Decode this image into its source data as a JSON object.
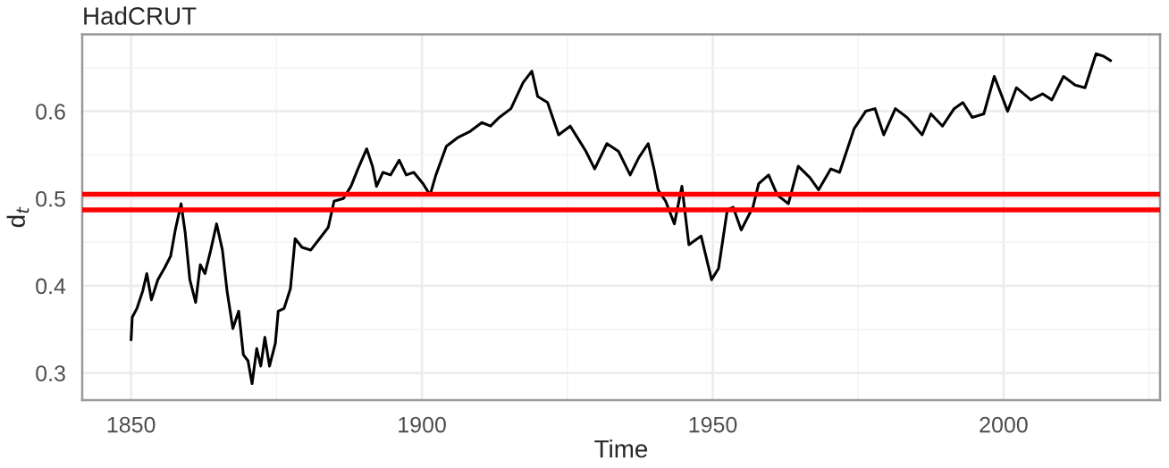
{
  "chart_data": {
    "type": "line",
    "title": "HadCRUT",
    "xlabel": "Time",
    "ylabel": "d$_{t}$",
    "xlim": [
      1841.6,
      2026.9
    ],
    "xticks": [
      1850,
      1900,
      1950,
      2000
    ],
    "ylim": [
      0.269,
      0.688
    ],
    "yticks": [
      0.3,
      0.4,
      0.5,
      0.6
    ],
    "grid": true,
    "ref_lines": [
      {
        "axis": "y",
        "value": 0.505,
        "color": "#ff0000"
      },
      {
        "axis": "y",
        "value": 0.487,
        "color": "#ff0000"
      }
    ],
    "series": [
      {
        "color": "#000000",
        "x": [
          1850,
          1850.2,
          1851,
          1852,
          1852.7,
          1853.5,
          1854.6,
          1855.8,
          1856.8,
          1857.6,
          1858.6,
          1859.3,
          1860.1,
          1861.1,
          1861.9,
          1862.7,
          1863.7,
          1864.7,
          1865.7,
          1866.5,
          1867.5,
          1868.5,
          1869.3,
          1870.1,
          1870.8,
          1871.6,
          1872.3,
          1873,
          1873.8,
          1874.8,
          1875.3,
          1876.3,
          1877.4,
          1878.2,
          1879.4,
          1880.9,
          1882.4,
          1883.9,
          1884.9,
          1886.5,
          1887.8,
          1889,
          1890.5,
          1891.5,
          1892.2,
          1893.3,
          1894.6,
          1896.1,
          1897.3,
          1898.6,
          1900.2,
          1901.4,
          1902.4,
          1904.2,
          1906.2,
          1908.3,
          1910.3,
          1911.8,
          1913.3,
          1915.3,
          1917.4,
          1918.9,
          1919.9,
          1921.6,
          1923.5,
          1925.5,
          1927,
          1928.2,
          1929.7,
          1931.8,
          1933.8,
          1935.8,
          1937.3,
          1938.9,
          1939.9,
          1940.6,
          1941.9,
          1943.4,
          1944.7,
          1945.9,
          1948,
          1949.8,
          1951,
          1952.5,
          1953.5,
          1954.9,
          1956.9,
          1957.9,
          1959.6,
          1961.1,
          1963,
          1964.7,
          1966.7,
          1968.2,
          1970.3,
          1971.8,
          1973.3,
          1974.3,
          1976.3,
          1977.9,
          1979.4,
          1981.4,
          1983.4,
          1986,
          1987.5,
          1989.5,
          1991.5,
          1993,
          1994.6,
          1996.6,
          1998.4,
          2000.7,
          2002.2,
          2004.7,
          2006.7,
          2008.3,
          2010.3,
          2012.3,
          2014,
          2015.9,
          2017.2,
          2018.4
        ],
        "values": [
          0.338,
          0.364,
          0.374,
          0.394,
          0.414,
          0.384,
          0.407,
          0.421,
          0.434,
          0.464,
          0.494,
          0.461,
          0.407,
          0.381,
          0.424,
          0.414,
          0.441,
          0.471,
          0.441,
          0.394,
          0.351,
          0.371,
          0.321,
          0.314,
          0.288,
          0.328,
          0.308,
          0.341,
          0.308,
          0.334,
          0.371,
          0.374,
          0.397,
          0.454,
          0.444,
          0.441,
          0.454,
          0.467,
          0.497,
          0.5,
          0.514,
          0.534,
          0.557,
          0.537,
          0.514,
          0.53,
          0.527,
          0.544,
          0.527,
          0.53,
          0.517,
          0.504,
          0.527,
          0.56,
          0.57,
          0.577,
          0.587,
          0.583,
          0.593,
          0.603,
          0.633,
          0.646,
          0.617,
          0.61,
          0.573,
          0.583,
          0.567,
          0.554,
          0.534,
          0.563,
          0.554,
          0.527,
          0.547,
          0.563,
          0.534,
          0.51,
          0.497,
          0.471,
          0.514,
          0.447,
          0.457,
          0.407,
          0.42,
          0.487,
          0.49,
          0.464,
          0.49,
          0.517,
          0.527,
          0.504,
          0.494,
          0.537,
          0.524,
          0.51,
          0.534,
          0.53,
          0.56,
          0.58,
          0.6,
          0.603,
          0.573,
          0.603,
          0.593,
          0.573,
          0.597,
          0.583,
          0.603,
          0.61,
          0.593,
          0.597,
          0.64,
          0.6,
          0.627,
          0.613,
          0.62,
          0.613,
          0.64,
          0.63,
          0.627,
          0.666,
          0.663,
          0.658
        ]
      }
    ]
  }
}
